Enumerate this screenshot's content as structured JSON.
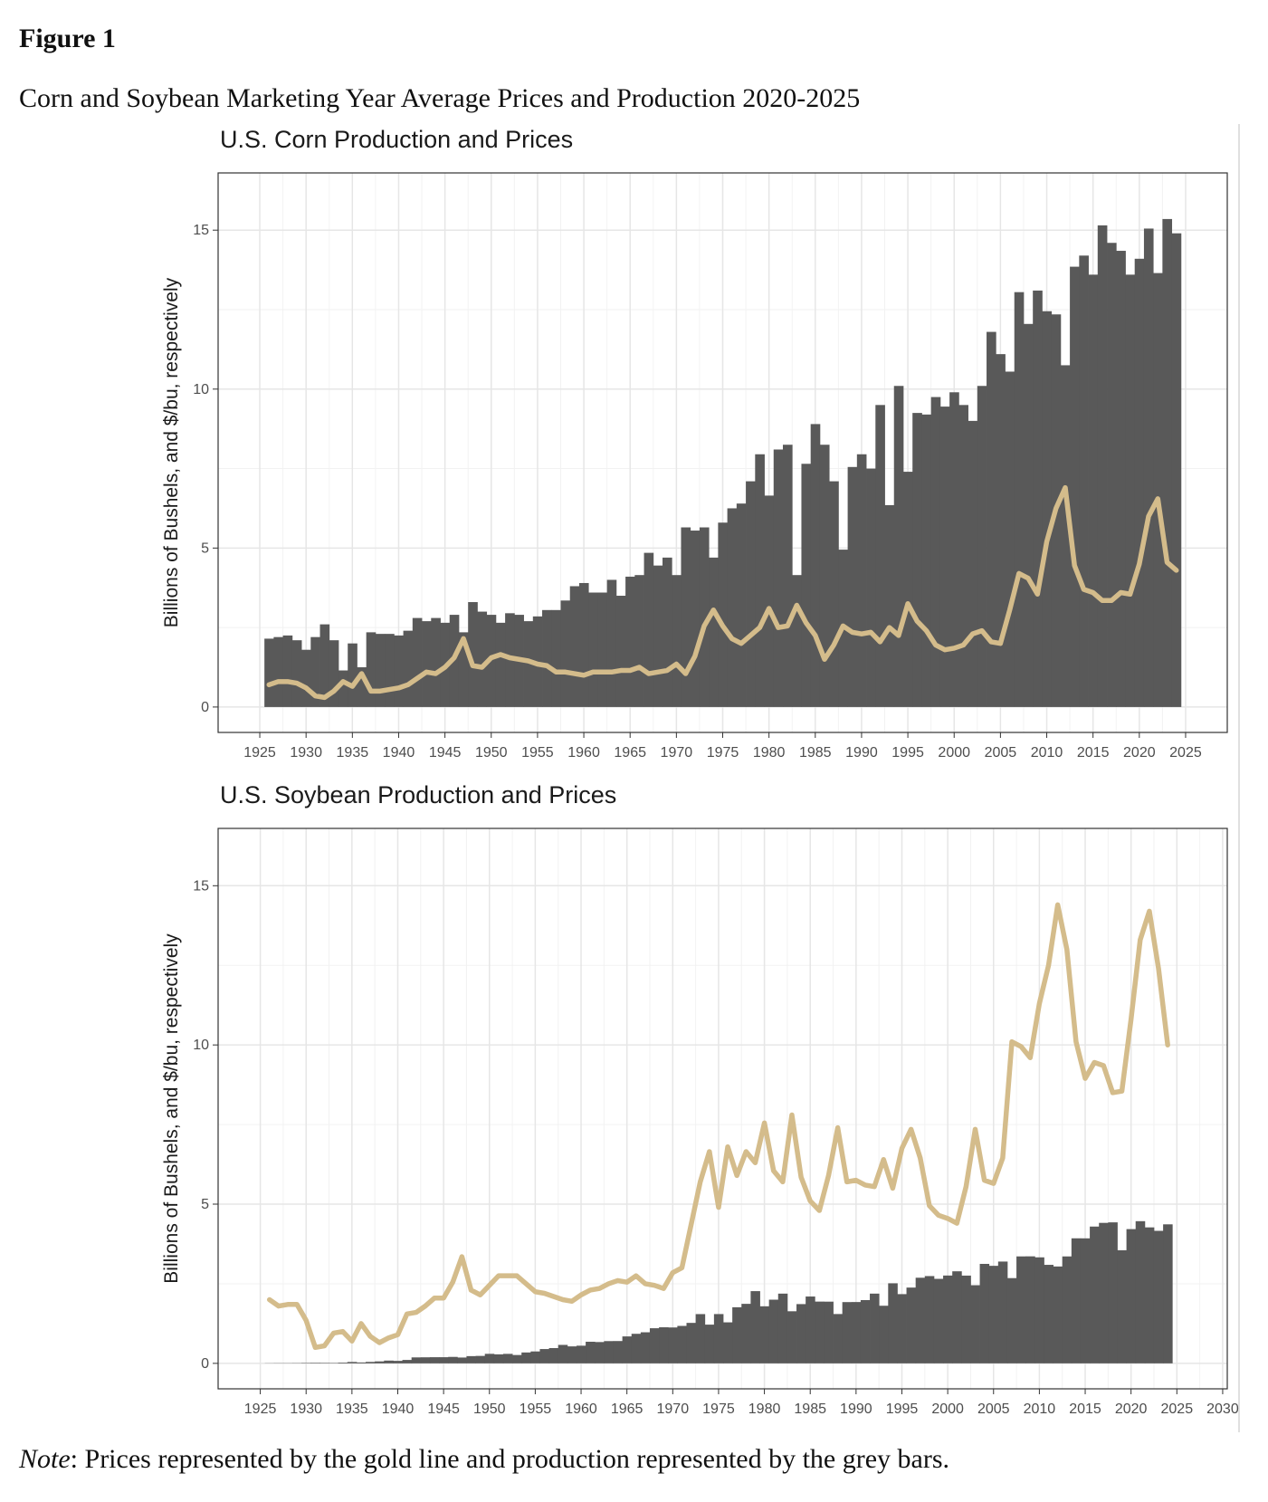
{
  "figure_label": "Figure 1",
  "caption": "Corn and Soybean Marketing Year Average Prices and Production 2020-2025",
  "note_label": "Note",
  "note_text": ": Prices represented by the gold line and production represented by the grey bars.",
  "chart_data": [
    {
      "type": "combo",
      "title": "U.S. Corn Production and Prices",
      "ylabel": "Billions of Bushels, and $/bu, respectively",
      "x": [
        1926,
        1927,
        1928,
        1929,
        1930,
        1931,
        1932,
        1933,
        1934,
        1935,
        1936,
        1937,
        1938,
        1939,
        1940,
        1941,
        1942,
        1943,
        1944,
        1945,
        1946,
        1947,
        1948,
        1949,
        1950,
        1951,
        1952,
        1953,
        1954,
        1955,
        1956,
        1957,
        1958,
        1959,
        1960,
        1961,
        1962,
        1963,
        1964,
        1965,
        1966,
        1967,
        1968,
        1969,
        1970,
        1971,
        1972,
        1973,
        1974,
        1975,
        1976,
        1977,
        1978,
        1979,
        1980,
        1981,
        1982,
        1983,
        1984,
        1985,
        1986,
        1987,
        1988,
        1989,
        1990,
        1991,
        1992,
        1993,
        1994,
        1995,
        1996,
        1997,
        1998,
        1999,
        2000,
        2001,
        2002,
        2003,
        2004,
        2005,
        2006,
        2007,
        2008,
        2009,
        2010,
        2011,
        2012,
        2013,
        2014,
        2015,
        2016,
        2017,
        2018,
        2019,
        2020,
        2021,
        2022,
        2023,
        2024
      ],
      "series": [
        {
          "mark": "bar",
          "color": "#595959",
          "values": [
            2.15,
            2.2,
            2.25,
            2.1,
            1.8,
            2.2,
            2.6,
            2.1,
            1.15,
            2.0,
            1.25,
            2.35,
            2.3,
            2.3,
            2.25,
            2.4,
            2.8,
            2.7,
            2.8,
            2.65,
            2.9,
            2.35,
            3.3,
            3.0,
            2.9,
            2.65,
            2.95,
            2.9,
            2.7,
            2.85,
            3.05,
            3.05,
            3.35,
            3.8,
            3.9,
            3.6,
            3.6,
            4.0,
            3.5,
            4.1,
            4.15,
            4.85,
            4.45,
            4.7,
            4.15,
            5.65,
            5.55,
            5.65,
            4.7,
            5.8,
            6.25,
            6.4,
            7.1,
            7.95,
            6.65,
            8.1,
            8.25,
            4.15,
            7.65,
            8.9,
            8.25,
            7.1,
            4.95,
            7.55,
            7.95,
            7.5,
            9.5,
            6.35,
            10.1,
            7.4,
            9.25,
            9.2,
            9.75,
            9.45,
            9.9,
            9.5,
            9.0,
            10.1,
            11.8,
            11.1,
            10.55,
            13.05,
            12.05,
            13.1,
            12.45,
            12.35,
            10.75,
            13.85,
            14.2,
            13.6,
            15.15,
            14.6,
            14.35,
            13.6,
            14.1,
            15.05,
            13.65,
            15.35,
            14.9
          ]
        },
        {
          "mark": "line",
          "color": "#d4bc8b",
          "values": [
            0.7,
            0.8,
            0.8,
            0.75,
            0.6,
            0.35,
            0.3,
            0.5,
            0.8,
            0.65,
            1.05,
            0.5,
            0.5,
            0.55,
            0.6,
            0.7,
            0.9,
            1.1,
            1.05,
            1.25,
            1.55,
            2.15,
            1.3,
            1.25,
            1.55,
            1.65,
            1.55,
            1.5,
            1.45,
            1.35,
            1.3,
            1.1,
            1.1,
            1.05,
            1.0,
            1.1,
            1.1,
            1.1,
            1.15,
            1.15,
            1.25,
            1.05,
            1.1,
            1.15,
            1.35,
            1.05,
            1.6,
            2.55,
            3.05,
            2.55,
            2.15,
            2.0,
            2.25,
            2.5,
            3.1,
            2.5,
            2.55,
            3.2,
            2.65,
            2.25,
            1.5,
            1.95,
            2.55,
            2.35,
            2.3,
            2.35,
            2.05,
            2.5,
            2.25,
            3.25,
            2.7,
            2.4,
            1.95,
            1.8,
            1.85,
            1.95,
            2.3,
            2.4,
            2.05,
            2.0,
            3.05,
            4.2,
            4.05,
            3.55,
            5.2,
            6.25,
            6.9,
            4.45,
            3.7,
            3.6,
            3.35,
            3.35,
            3.6,
            3.55,
            4.5,
            6.0,
            6.55,
            4.55,
            4.3
          ]
        }
      ],
      "xlim": [
        1920.5,
        2029.5
      ],
      "xticks": [
        1925,
        1930,
        1935,
        1940,
        1945,
        1950,
        1955,
        1960,
        1965,
        1970,
        1975,
        1980,
        1985,
        1990,
        1995,
        2000,
        2005,
        2010,
        2015,
        2020,
        2025
      ],
      "ylim": [
        -0.8,
        16.8
      ],
      "yticks": [
        0,
        5,
        10,
        15
      ],
      "grid": true,
      "minor_grid": true
    },
    {
      "type": "combo",
      "title": "U.S. Soybean Production and Prices",
      "ylabel": "Billions of Bushels, and $/bu, respectively",
      "x": [
        1926,
        1927,
        1928,
        1929,
        1930,
        1931,
        1932,
        1933,
        1934,
        1935,
        1936,
        1937,
        1938,
        1939,
        1940,
        1941,
        1942,
        1943,
        1944,
        1945,
        1946,
        1947,
        1948,
        1949,
        1950,
        1951,
        1952,
        1953,
        1954,
        1955,
        1956,
        1957,
        1958,
        1959,
        1960,
        1961,
        1962,
        1963,
        1964,
        1965,
        1966,
        1967,
        1968,
        1969,
        1970,
        1971,
        1972,
        1973,
        1974,
        1975,
        1976,
        1977,
        1978,
        1979,
        1980,
        1981,
        1982,
        1983,
        1984,
        1985,
        1986,
        1987,
        1988,
        1989,
        1990,
        1991,
        1992,
        1993,
        1994,
        1995,
        1996,
        1997,
        1998,
        1999,
        2000,
        2001,
        2002,
        2003,
        2004,
        2005,
        2006,
        2007,
        2008,
        2009,
        2010,
        2011,
        2012,
        2013,
        2014,
        2015,
        2016,
        2017,
        2018,
        2019,
        2020,
        2021,
        2022,
        2023,
        2024
      ],
      "series": [
        {
          "mark": "bar",
          "color": "#595959",
          "values": [
            0.005,
            0.007,
            0.007,
            0.009,
            0.014,
            0.017,
            0.015,
            0.013,
            0.023,
            0.044,
            0.029,
            0.046,
            0.062,
            0.087,
            0.078,
            0.107,
            0.187,
            0.19,
            0.193,
            0.193,
            0.203,
            0.183,
            0.227,
            0.234,
            0.299,
            0.283,
            0.298,
            0.262,
            0.342,
            0.374,
            0.449,
            0.48,
            0.58,
            0.533,
            0.555,
            0.679,
            0.669,
            0.699,
            0.701,
            0.846,
            0.928,
            0.976,
            1.103,
            1.133,
            1.127,
            1.176,
            1.271,
            1.547,
            1.216,
            1.548,
            1.288,
            1.762,
            1.869,
            2.268,
            1.792,
            2.0,
            2.19,
            1.636,
            1.861,
            2.099,
            1.94,
            1.938,
            1.549,
            1.924,
            1.926,
            1.987,
            2.19,
            1.809,
            2.515,
            2.174,
            2.38,
            2.689,
            2.741,
            2.654,
            2.758,
            2.891,
            2.756,
            2.454,
            3.124,
            3.063,
            3.197,
            2.677,
            3.359,
            3.361,
            3.329,
            3.094,
            3.042,
            3.358,
            3.927,
            3.926,
            4.296,
            4.412,
            4.428,
            3.552,
            4.216,
            4.465,
            4.27,
            4.162,
            4.366
          ]
        },
        {
          "mark": "line",
          "color": "#d4bc8b",
          "values": [
            2.0,
            1.8,
            1.85,
            1.85,
            1.35,
            0.5,
            0.55,
            0.95,
            1.0,
            0.7,
            1.25,
            0.85,
            0.65,
            0.8,
            0.9,
            1.55,
            1.6,
            1.8,
            2.05,
            2.05,
            2.55,
            3.35,
            2.3,
            2.15,
            2.45,
            2.75,
            2.75,
            2.75,
            2.5,
            2.25,
            2.2,
            2.1,
            2.0,
            1.95,
            2.15,
            2.3,
            2.35,
            2.5,
            2.6,
            2.55,
            2.75,
            2.5,
            2.45,
            2.35,
            2.85,
            3.0,
            4.35,
            5.7,
            6.65,
            4.9,
            6.8,
            5.9,
            6.65,
            6.3,
            7.55,
            6.05,
            5.7,
            7.8,
            5.85,
            5.1,
            4.8,
            5.9,
            7.4,
            5.7,
            5.75,
            5.6,
            5.55,
            6.4,
            5.5,
            6.75,
            7.35,
            6.45,
            4.95,
            4.65,
            4.55,
            4.4,
            5.55,
            7.35,
            5.75,
            5.65,
            6.45,
            10.1,
            9.95,
            9.6,
            11.3,
            12.5,
            14.4,
            13.0,
            10.1,
            8.95,
            9.45,
            9.35,
            8.5,
            8.55,
            10.8,
            13.3,
            14.2,
            12.4,
            10.0
          ]
        }
      ],
      "xlim": [
        1920.4,
        2030.5
      ],
      "xticks": [
        1925,
        1930,
        1935,
        1940,
        1945,
        1950,
        1955,
        1960,
        1965,
        1970,
        1975,
        1980,
        1985,
        1990,
        1995,
        2000,
        2005,
        2010,
        2015,
        2020,
        2025,
        2030
      ],
      "ylim": [
        -0.8,
        16.8
      ],
      "yticks": [
        0,
        5,
        10,
        15
      ],
      "grid": true,
      "minor_grid": true
    }
  ]
}
